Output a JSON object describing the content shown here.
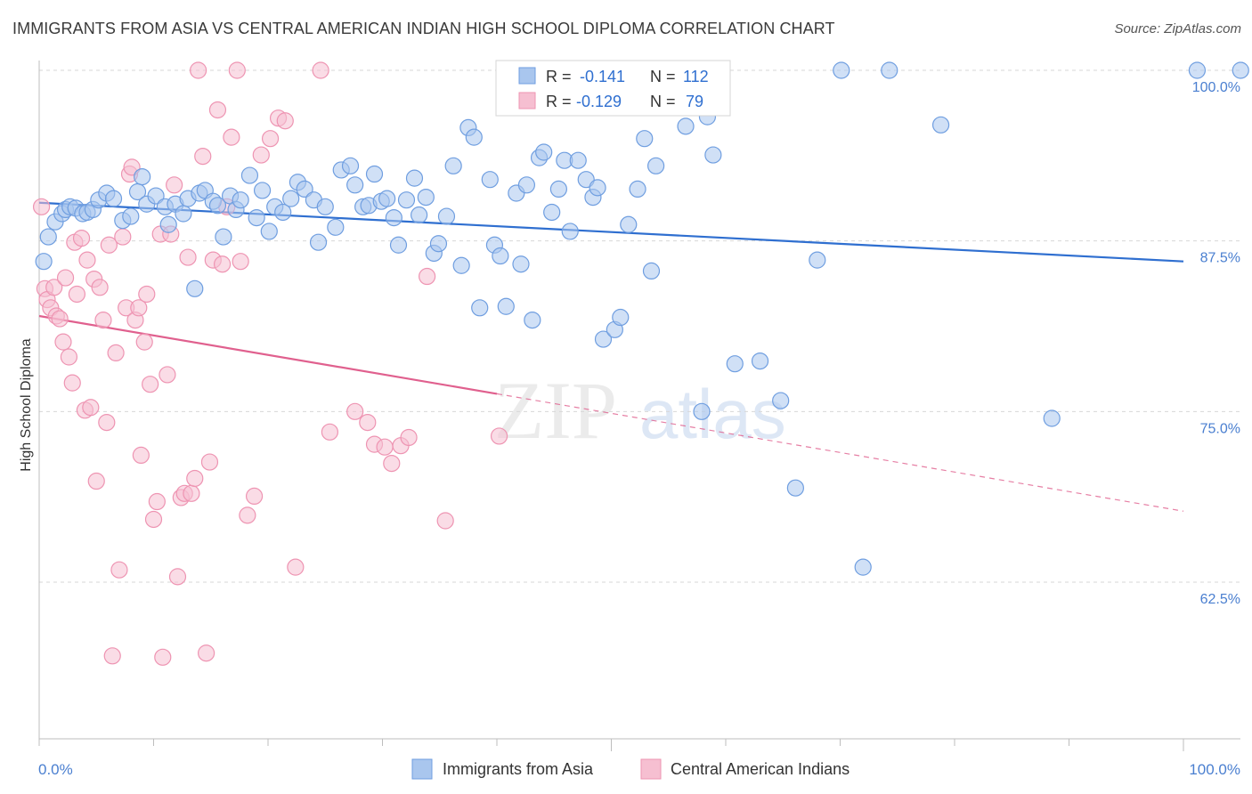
{
  "title": "IMMIGRANTS FROM ASIA VS CENTRAL AMERICAN INDIAN HIGH SCHOOL DIPLOMA CORRELATION CHART",
  "source": "Source: ZipAtlas.com",
  "watermark": {
    "zip": "ZIP",
    "atlas": "atlas"
  },
  "colors": {
    "blue_fill": "#a9c6ee",
    "blue_stroke": "#6f9ee0",
    "blue_line": "#2f6fd0",
    "pink_fill": "#f6bfd1",
    "pink_stroke": "#ee94b2",
    "pink_line": "#e0608e",
    "grid": "#d7d7d7",
    "tick_label": "#4a7fd0"
  },
  "stats": {
    "r_label": "R =",
    "n_label": "N =",
    "rows": [
      {
        "r": "-0.141",
        "n": "112",
        "series": "blue"
      },
      {
        "r": "-0.129",
        "n": "79",
        "series": "pink"
      }
    ]
  },
  "chart_data": {
    "type": "scatter",
    "title": "IMMIGRANTS FROM ASIA VS CENTRAL AMERICAN INDIAN HIGH SCHOOL DIPLOMA CORRELATION CHART",
    "xlabel": "",
    "ylabel": "High School Diploma",
    "xlim": [
      0,
      100
    ],
    "ylim": [
      52.5,
      101.5
    ],
    "x_tick_labels": [
      "0.0%",
      "100.0%"
    ],
    "y_ticks": [
      62.5,
      75.0,
      87.5,
      100.0
    ],
    "y_tick_labels": [
      "62.5%",
      "75.0%",
      "87.5%",
      "100.0%"
    ],
    "grid": "horizontal dashed",
    "legend_position": "bottom-center",
    "series": [
      {
        "name": "Immigrants from Asia",
        "color": "#a9c6ee",
        "trend": {
          "x": [
            0,
            100
          ],
          "y": [
            90.3,
            86.0
          ],
          "style": "solid"
        },
        "points": [
          [
            0.4,
            86.0
          ],
          [
            0.8,
            87.8
          ],
          [
            1.4,
            88.9
          ],
          [
            2.0,
            89.5
          ],
          [
            2.3,
            89.8
          ],
          [
            2.7,
            90.0
          ],
          [
            3.2,
            89.9
          ],
          [
            3.8,
            89.5
          ],
          [
            4.2,
            89.6
          ],
          [
            4.7,
            89.8
          ],
          [
            5.2,
            90.5
          ],
          [
            5.9,
            91.0
          ],
          [
            6.5,
            90.6
          ],
          [
            7.3,
            89.0
          ],
          [
            8.0,
            89.3
          ],
          [
            8.6,
            91.1
          ],
          [
            9.0,
            92.2
          ],
          [
            9.4,
            90.2
          ],
          [
            10.2,
            90.8
          ],
          [
            11.0,
            90.0
          ],
          [
            11.3,
            88.7
          ],
          [
            11.9,
            90.2
          ],
          [
            12.6,
            89.5
          ],
          [
            13.0,
            90.6
          ],
          [
            13.6,
            84.0
          ],
          [
            14.0,
            91.0
          ],
          [
            14.5,
            91.2
          ],
          [
            15.2,
            90.4
          ],
          [
            15.6,
            90.1
          ],
          [
            16.1,
            87.8
          ],
          [
            16.7,
            90.8
          ],
          [
            17.2,
            89.8
          ],
          [
            17.6,
            90.5
          ],
          [
            18.4,
            92.3
          ],
          [
            19.0,
            89.2
          ],
          [
            19.5,
            91.2
          ],
          [
            20.1,
            88.2
          ],
          [
            20.6,
            90.0
          ],
          [
            21.3,
            89.6
          ],
          [
            22.0,
            90.6
          ],
          [
            22.6,
            91.8
          ],
          [
            23.2,
            91.3
          ],
          [
            24.0,
            90.5
          ],
          [
            24.4,
            87.4
          ],
          [
            25.0,
            90.0
          ],
          [
            25.9,
            88.5
          ],
          [
            26.4,
            92.7
          ],
          [
            27.2,
            93.0
          ],
          [
            27.6,
            91.6
          ],
          [
            28.3,
            90.0
          ],
          [
            28.8,
            90.1
          ],
          [
            29.3,
            92.4
          ],
          [
            29.9,
            90.4
          ],
          [
            30.4,
            90.6
          ],
          [
            31.0,
            89.2
          ],
          [
            31.4,
            87.2
          ],
          [
            32.1,
            90.5
          ],
          [
            32.8,
            92.1
          ],
          [
            33.2,
            89.4
          ],
          [
            33.8,
            90.7
          ],
          [
            34.5,
            86.6
          ],
          [
            34.9,
            87.3
          ],
          [
            35.6,
            89.3
          ],
          [
            36.2,
            93.0
          ],
          [
            36.9,
            85.7
          ],
          [
            37.5,
            95.8
          ],
          [
            38.0,
            95.1
          ],
          [
            38.5,
            82.6
          ],
          [
            39.4,
            92.0
          ],
          [
            39.8,
            87.2
          ],
          [
            40.3,
            86.4
          ],
          [
            40.8,
            82.7
          ],
          [
            41.7,
            91.0
          ],
          [
            42.1,
            85.8
          ],
          [
            42.6,
            91.6
          ],
          [
            43.1,
            81.7
          ],
          [
            43.7,
            93.6
          ],
          [
            44.1,
            94.0
          ],
          [
            44.8,
            89.6
          ],
          [
            45.4,
            91.3
          ],
          [
            45.9,
            93.4
          ],
          [
            46.4,
            88.2
          ],
          [
            47.1,
            93.4
          ],
          [
            47.8,
            92.0
          ],
          [
            48.4,
            90.7
          ],
          [
            48.8,
            91.4
          ],
          [
            49.3,
            80.3
          ],
          [
            49.9,
            99.0
          ],
          [
            50.3,
            81.0
          ],
          [
            50.8,
            81.9
          ],
          [
            51.5,
            88.7
          ],
          [
            52.3,
            91.3
          ],
          [
            52.9,
            95.0
          ],
          [
            53.5,
            85.3
          ],
          [
            53.9,
            93.0
          ],
          [
            55.2,
            99.5
          ],
          [
            56.5,
            95.9
          ],
          [
            57.9,
            75.0
          ],
          [
            58.4,
            96.6
          ],
          [
            58.9,
            93.8
          ],
          [
            60.8,
            78.5
          ],
          [
            63.0,
            78.7
          ],
          [
            64.8,
            75.8
          ],
          [
            66.1,
            69.4
          ],
          [
            68.0,
            86.1
          ],
          [
            70.1,
            100.0
          ],
          [
            72.0,
            63.6
          ],
          [
            74.3,
            100.0
          ],
          [
            78.8,
            96.0
          ],
          [
            88.5,
            74.5
          ],
          [
            101.2,
            100.0
          ],
          [
            105.0,
            100.0
          ]
        ]
      },
      {
        "name": "Central American Indians",
        "color": "#f6bfd1",
        "trend": {
          "x": [
            0,
            40
          ],
          "y": [
            82.0,
            76.3
          ],
          "style": "solid",
          "dashed_to": [
            100,
            67.7
          ]
        },
        "points": [
          [
            0.2,
            90.0
          ],
          [
            0.5,
            84.0
          ],
          [
            0.7,
            83.2
          ],
          [
            1.0,
            82.6
          ],
          [
            1.3,
            84.1
          ],
          [
            1.5,
            82.0
          ],
          [
            1.8,
            81.8
          ],
          [
            2.1,
            80.1
          ],
          [
            2.3,
            84.8
          ],
          [
            2.6,
            79.0
          ],
          [
            2.9,
            77.1
          ],
          [
            3.1,
            87.4
          ],
          [
            3.3,
            83.6
          ],
          [
            3.7,
            87.7
          ],
          [
            4.0,
            75.1
          ],
          [
            4.2,
            86.1
          ],
          [
            4.5,
            75.3
          ],
          [
            4.8,
            84.7
          ],
          [
            5.0,
            69.9
          ],
          [
            5.3,
            84.1
          ],
          [
            5.6,
            81.7
          ],
          [
            5.9,
            74.2
          ],
          [
            6.1,
            87.2
          ],
          [
            6.4,
            57.1
          ],
          [
            6.7,
            79.3
          ],
          [
            7.0,
            63.4
          ],
          [
            7.3,
            87.8
          ],
          [
            7.6,
            82.6
          ],
          [
            7.9,
            92.4
          ],
          [
            8.1,
            92.9
          ],
          [
            8.4,
            81.7
          ],
          [
            8.7,
            82.6
          ],
          [
            8.9,
            71.8
          ],
          [
            9.2,
            80.1
          ],
          [
            9.4,
            83.6
          ],
          [
            9.7,
            77.0
          ],
          [
            10.0,
            67.1
          ],
          [
            10.3,
            68.4
          ],
          [
            10.6,
            88.0
          ],
          [
            10.8,
            57.0
          ],
          [
            11.2,
            77.7
          ],
          [
            11.5,
            88.0
          ],
          [
            11.8,
            91.6
          ],
          [
            12.1,
            62.9
          ],
          [
            12.4,
            68.7
          ],
          [
            12.7,
            69.0
          ],
          [
            13.0,
            86.3
          ],
          [
            13.3,
            69.0
          ],
          [
            13.6,
            70.1
          ],
          [
            13.9,
            100.0
          ],
          [
            14.3,
            93.7
          ],
          [
            14.6,
            57.3
          ],
          [
            14.9,
            71.3
          ],
          [
            15.2,
            86.1
          ],
          [
            15.6,
            97.1
          ],
          [
            16.0,
            85.8
          ],
          [
            16.4,
            90.0
          ],
          [
            16.8,
            95.1
          ],
          [
            17.3,
            100.0
          ],
          [
            17.6,
            86.0
          ],
          [
            18.2,
            67.4
          ],
          [
            18.8,
            68.8
          ],
          [
            19.4,
            93.8
          ],
          [
            20.2,
            95.0
          ],
          [
            20.9,
            96.5
          ],
          [
            21.5,
            96.3
          ],
          [
            22.4,
            63.6
          ],
          [
            24.6,
            100.0
          ],
          [
            25.4,
            73.5
          ],
          [
            27.6,
            75.0
          ],
          [
            28.7,
            74.2
          ],
          [
            29.3,
            72.6
          ],
          [
            30.2,
            72.4
          ],
          [
            30.8,
            71.2
          ],
          [
            31.6,
            72.5
          ],
          [
            32.3,
            73.1
          ],
          [
            33.9,
            84.9
          ],
          [
            35.5,
            67.0
          ],
          [
            40.2,
            73.2
          ]
        ]
      }
    ]
  },
  "legend": [
    {
      "label": "Immigrants from Asia",
      "series": "blue"
    },
    {
      "label": "Central American Indians",
      "series": "pink"
    }
  ]
}
